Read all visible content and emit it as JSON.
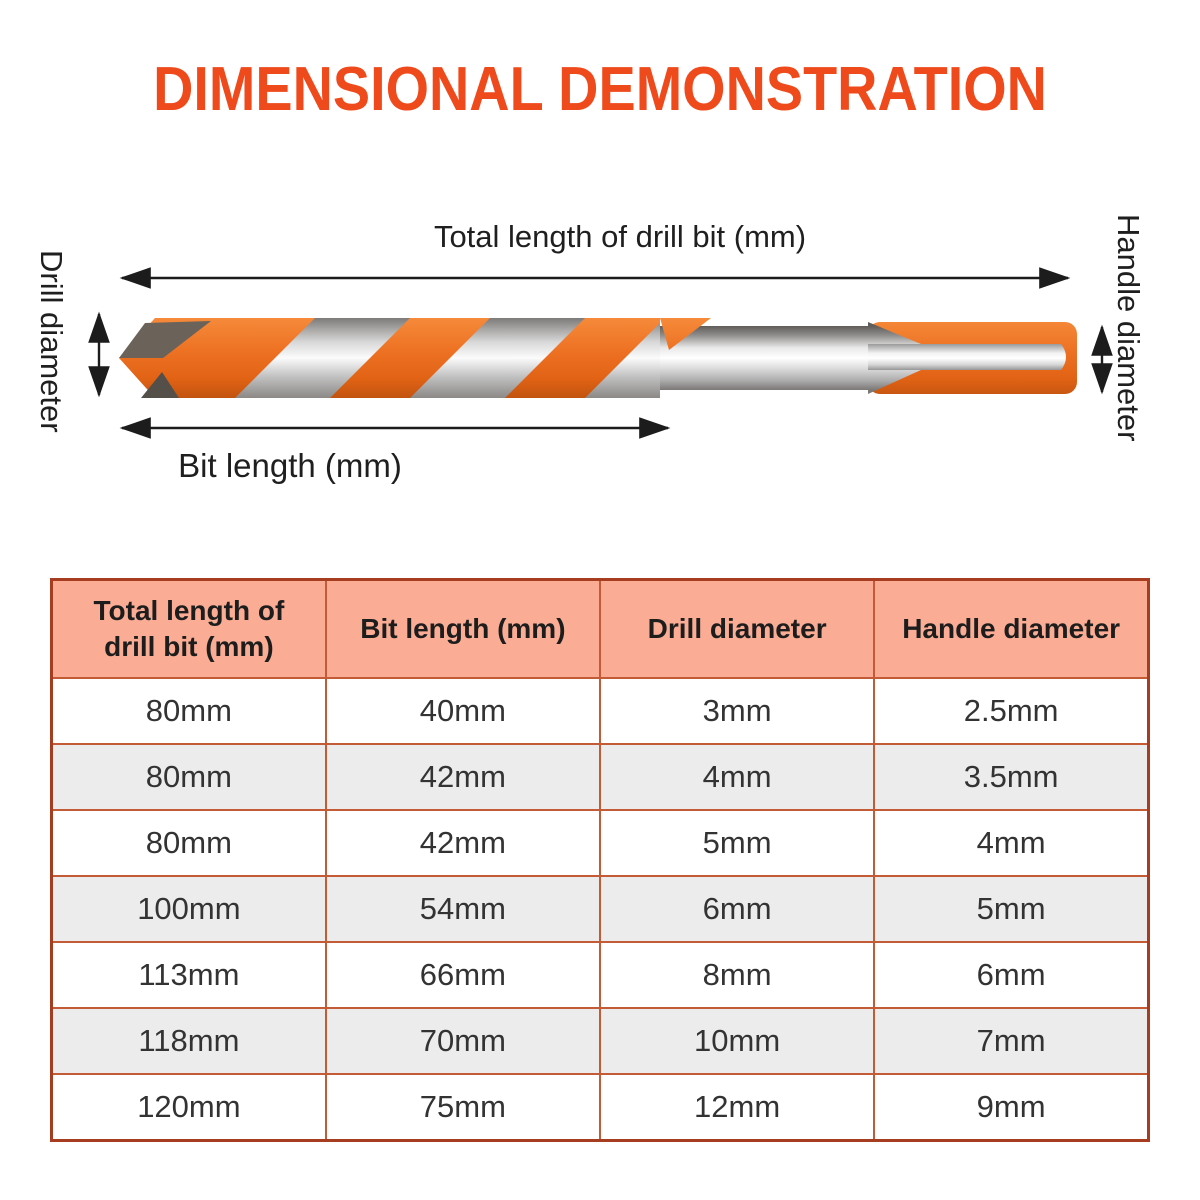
{
  "title": "DIMENSIONAL DEMONSTRATION",
  "diagram": {
    "total_length_label": "Total length of drill bit (mm)",
    "bit_length_label": "Bit length (mm)",
    "drill_diameter_label": "Drill diameter",
    "handle_diameter_label": "Handle diameter",
    "illustration": "multifunction-masonry-drill-bit-side-view"
  },
  "table": {
    "headers": [
      "Total length of drill bit (mm)",
      "Bit length (mm)",
      "Drill diameter",
      "Handle diameter"
    ],
    "rows": [
      [
        "80mm",
        "40mm",
        "3mm",
        "2.5mm"
      ],
      [
        "80mm",
        "42mm",
        "4mm",
        "3.5mm"
      ],
      [
        "80mm",
        "42mm",
        "5mm",
        "4mm"
      ],
      [
        "100mm",
        "54mm",
        "6mm",
        "5mm"
      ],
      [
        "113mm",
        "66mm",
        "8mm",
        "6mm"
      ],
      [
        "118mm",
        "70mm",
        "10mm",
        "7mm"
      ],
      [
        "120mm",
        "75mm",
        "12mm",
        "9mm"
      ]
    ]
  },
  "colors": {
    "title_text": "#ef4a1c",
    "header_bg": "#faad94",
    "alt_row_bg": "#ececec",
    "grid_line": "#c25b36",
    "outer_border": "#a63d20",
    "bit_orange": "#ed6f1f",
    "steel_gray": "#c9c9c9",
    "arrow_black": "#1c1c1c",
    "text_dark": "#333333"
  }
}
